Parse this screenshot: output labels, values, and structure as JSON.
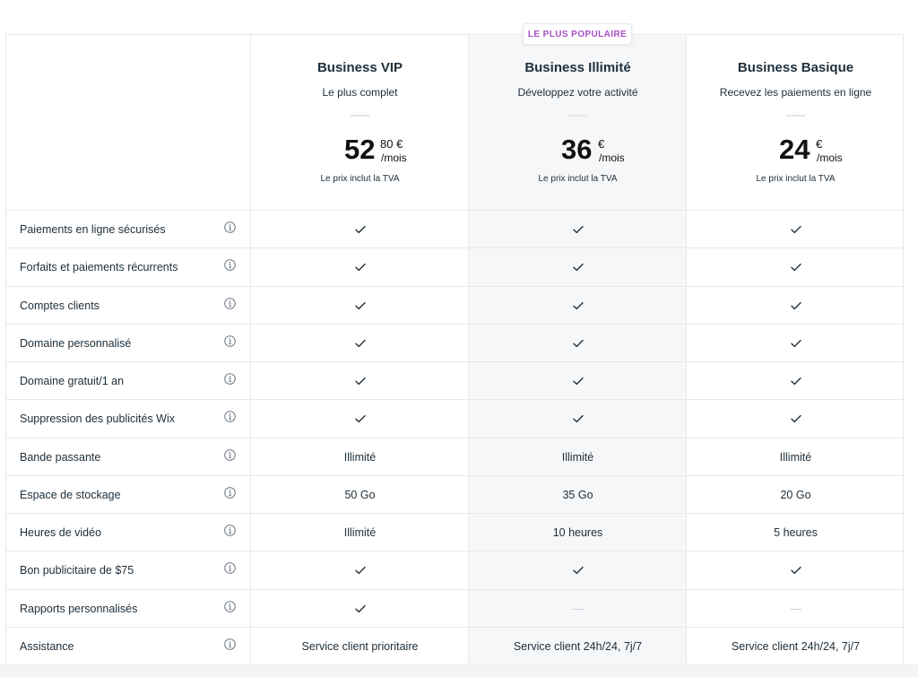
{
  "badge": "LE PLUS POPULAIRE",
  "plans": [
    {
      "name": "Business VIP",
      "subtitle": "Le plus complet",
      "price_main": "52",
      "price_cents": "80 €",
      "price_per": "/mois",
      "price_note": "Le prix inclut la TVA"
    },
    {
      "name": "Business Illimité",
      "subtitle": "Développez votre activité",
      "price_main": "36",
      "price_cents": "€",
      "price_per": "/mois",
      "price_note": "Le prix inclut la TVA"
    },
    {
      "name": "Business Basique",
      "subtitle": "Recevez les paiements en ligne",
      "price_main": "24",
      "price_cents": "€",
      "price_per": "/mois",
      "price_note": "Le prix inclut la TVA"
    }
  ],
  "features": [
    {
      "label": "Paiements en ligne sécurisés",
      "values": [
        "check",
        "check",
        "check"
      ]
    },
    {
      "label": "Forfaits et paiements récurrents",
      "values": [
        "check",
        "check",
        "check"
      ]
    },
    {
      "label": "Comptes clients",
      "values": [
        "check",
        "check",
        "check"
      ]
    },
    {
      "label": "Domaine personnalisé",
      "values": [
        "check",
        "check",
        "check"
      ]
    },
    {
      "label": "Domaine gratuit/1 an",
      "values": [
        "check",
        "check",
        "check"
      ]
    },
    {
      "label": "Suppression des publicités Wix",
      "values": [
        "check",
        "check",
        "check"
      ]
    },
    {
      "label": "Bande passante",
      "values": [
        "Illimité",
        "Illimité",
        "Illimité"
      ]
    },
    {
      "label": "Espace de stockage",
      "values": [
        "50 Go",
        "35 Go",
        "20 Go"
      ]
    },
    {
      "label": "Heures de vidéo",
      "values": [
        "Illimité",
        "10 heures",
        "5 heures"
      ]
    },
    {
      "label": "Bon publicitaire de $75",
      "values": [
        "check",
        "check",
        "check"
      ]
    },
    {
      "label": "Rapports personnalisés",
      "values": [
        "check",
        "dash",
        "dash"
      ]
    },
    {
      "label": "Assistance",
      "values": [
        "Service client prioritaire",
        "Service client 24h/24, 7j/7",
        "Service client 24h/24, 7j/7"
      ]
    }
  ],
  "dash_glyph": "—",
  "icons": {
    "feature_info": "info-icon",
    "included": "check-icon",
    "not_included": "dash"
  },
  "colors": {
    "badge_text": "#a64fc6",
    "highlight_column": "#f6f7f9",
    "grid": "#e6e8ec"
  }
}
